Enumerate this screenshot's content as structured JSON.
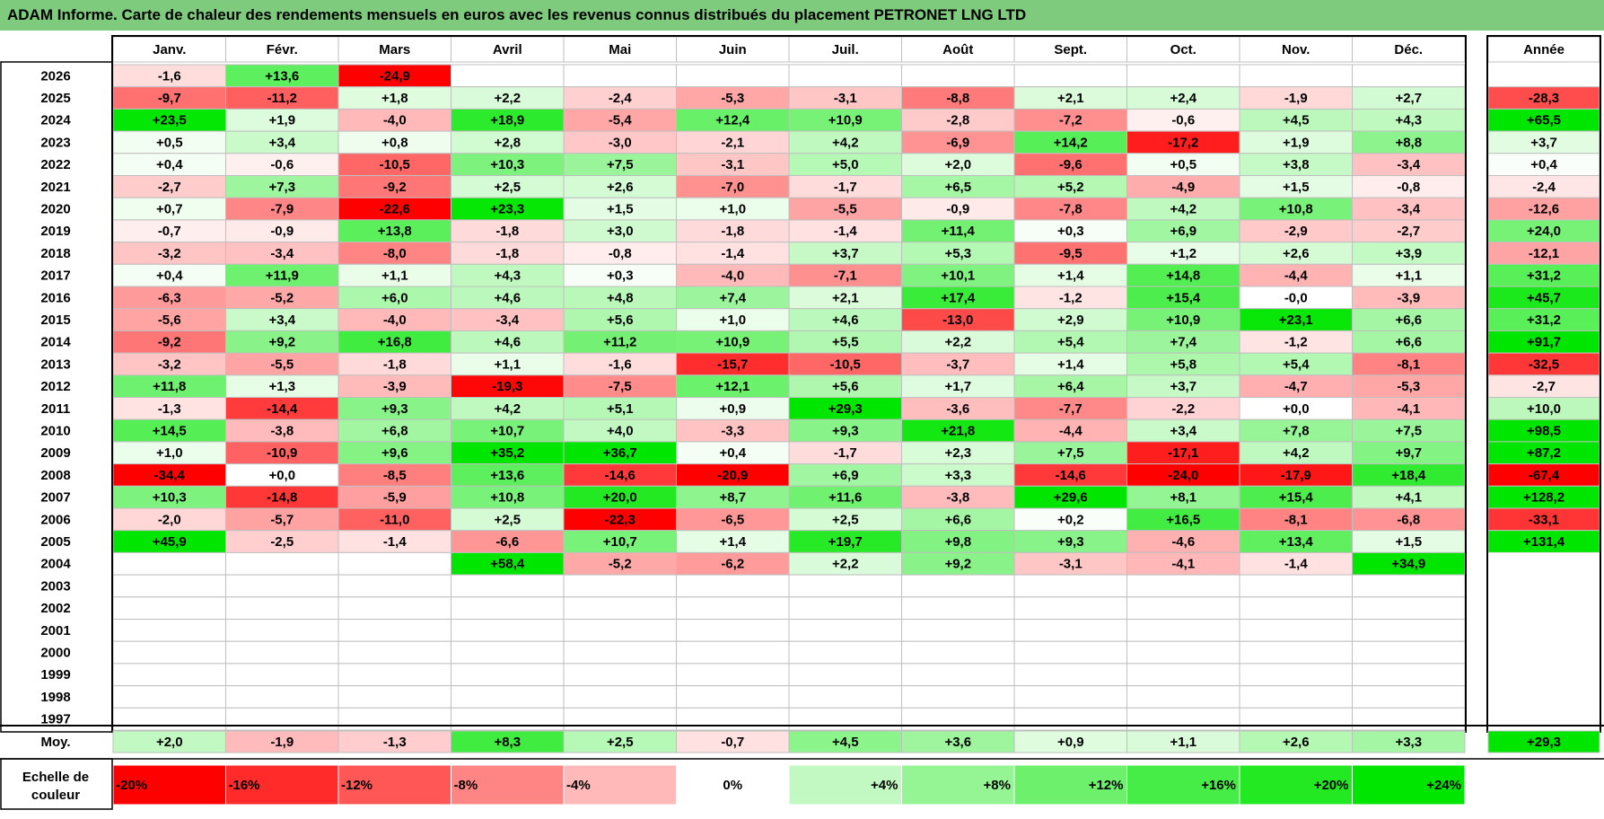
{
  "title": "ADAM Informe. Carte de chaleur des rendements mensuels en euros avec les revenus connus distribués du placement PETRONET LNG LTD",
  "chart_data": {
    "type": "heatmap",
    "title": "ADAM Informe. Carte de chaleur des rendements mensuels en euros avec les revenus connus distribués du placement PETRONET LNG LTD",
    "months": [
      "Janv.",
      "Févr.",
      "Mars",
      "Avril",
      "Mai",
      "Juin",
      "Juil.",
      "Août",
      "Sept.",
      "Oct.",
      "Nov.",
      "Déc."
    ],
    "year_header": "Année",
    "rows": [
      {
        "year": "2026",
        "months": [
          "-1,6",
          "+13,6",
          "-24,9",
          "",
          "",
          "",
          "",
          "",
          "",
          "",
          "",
          ""
        ],
        "annual": ""
      },
      {
        "year": "2025",
        "months": [
          "-9,7",
          "-11,2",
          "+1,8",
          "+2,2",
          "-2,4",
          "-5,3",
          "-3,1",
          "-8,8",
          "+2,1",
          "+2,4",
          "-1,9",
          "+2,7"
        ],
        "annual": "-28,3"
      },
      {
        "year": "2024",
        "months": [
          "+23,5",
          "+1,9",
          "-4,0",
          "+18,9",
          "-5,4",
          "+12,4",
          "+10,9",
          "-2,8",
          "-7,2",
          "-0,6",
          "+4,5",
          "+4,3"
        ],
        "annual": "+65,5"
      },
      {
        "year": "2023",
        "months": [
          "+0,5",
          "+3,4",
          "+0,8",
          "+2,8",
          "-3,0",
          "-2,1",
          "+4,2",
          "-6,9",
          "+14,2",
          "-17,2",
          "+1,9",
          "+8,8"
        ],
        "annual": "+3,7"
      },
      {
        "year": "2022",
        "months": [
          "+0,4",
          "-0,6",
          "-10,5",
          "+10,3",
          "+7,5",
          "-3,1",
          "+5,0",
          "+2,0",
          "-9,6",
          "+0,5",
          "+3,8",
          "-3,4"
        ],
        "annual": "+0,4"
      },
      {
        "year": "2021",
        "months": [
          "-2,7",
          "+7,3",
          "-9,2",
          "+2,5",
          "+2,6",
          "-7,0",
          "-1,7",
          "+6,5",
          "+5,2",
          "-4,9",
          "+1,5",
          "-0,8"
        ],
        "annual": "-2,4"
      },
      {
        "year": "2020",
        "months": [
          "+0,7",
          "-7,9",
          "-22,6",
          "+23,3",
          "+1,5",
          "+1,0",
          "-5,5",
          "-0,9",
          "-7,8",
          "+4,2",
          "+10,8",
          "-3,4"
        ],
        "annual": "-12,6"
      },
      {
        "year": "2019",
        "months": [
          "-0,7",
          "-0,9",
          "+13,8",
          "-1,8",
          "+3,0",
          "-1,8",
          "-1,4",
          "+11,4",
          "+0,3",
          "+6,9",
          "-2,9",
          "-2,7"
        ],
        "annual": "+24,0"
      },
      {
        "year": "2018",
        "months": [
          "-3,2",
          "-3,4",
          "-8,0",
          "-1,8",
          "-0,8",
          "-1,4",
          "+3,7",
          "+5,3",
          "-9,5",
          "+1,2",
          "+2,6",
          "+3,9"
        ],
        "annual": "-12,1"
      },
      {
        "year": "2017",
        "months": [
          "+0,4",
          "+11,9",
          "+1,1",
          "+4,3",
          "+0,3",
          "-4,0",
          "-7,1",
          "+10,1",
          "+1,4",
          "+14,8",
          "-4,4",
          "+1,1"
        ],
        "annual": "+31,2"
      },
      {
        "year": "2016",
        "months": [
          "-6,3",
          "-5,2",
          "+6,0",
          "+4,6",
          "+4,8",
          "+7,4",
          "+2,1",
          "+17,4",
          "-1,2",
          "+15,4",
          "-0,0",
          "-3,9"
        ],
        "annual": "+45,7"
      },
      {
        "year": "2015",
        "months": [
          "-5,6",
          "+3,4",
          "-4,0",
          "-3,4",
          "+5,6",
          "+1,0",
          "+4,6",
          "-13,0",
          "+2,9",
          "+10,9",
          "+23,1",
          "+6,6"
        ],
        "annual": "+31,2"
      },
      {
        "year": "2014",
        "months": [
          "-9,2",
          "+9,2",
          "+16,8",
          "+4,6",
          "+11,2",
          "+10,9",
          "+5,5",
          "+2,2",
          "+5,4",
          "+7,4",
          "-1,2",
          "+6,6"
        ],
        "annual": "+91,7"
      },
      {
        "year": "2013",
        "months": [
          "-3,2",
          "-5,5",
          "-1,8",
          "+1,1",
          "-1,6",
          "-15,7",
          "-10,5",
          "-3,7",
          "+1,4",
          "+5,8",
          "+5,4",
          "-8,1"
        ],
        "annual": "-32,5"
      },
      {
        "year": "2012",
        "months": [
          "+11,8",
          "+1,3",
          "-3,9",
          "-19,3",
          "-7,5",
          "+12,1",
          "+5,6",
          "+1,7",
          "+6,4",
          "+3,7",
          "-4,7",
          "-5,3"
        ],
        "annual": "-2,7"
      },
      {
        "year": "2011",
        "months": [
          "-1,3",
          "-14,4",
          "+9,3",
          "+4,2",
          "+5,1",
          "+0,9",
          "+29,3",
          "-3,6",
          "-7,7",
          "-2,2",
          "+0,0",
          "-4,1"
        ],
        "annual": "+10,0"
      },
      {
        "year": "2010",
        "months": [
          "+14,5",
          "-3,8",
          "+6,8",
          "+10,7",
          "+4,0",
          "-3,3",
          "+9,3",
          "+21,8",
          "-4,4",
          "+3,4",
          "+7,8",
          "+7,5"
        ],
        "annual": "+98,5"
      },
      {
        "year": "2009",
        "months": [
          "+1,0",
          "-10,9",
          "+9,6",
          "+35,2",
          "+36,7",
          "+0,4",
          "-1,7",
          "+2,3",
          "+7,5",
          "-17,1",
          "+4,2",
          "+9,7"
        ],
        "annual": "+87,2"
      },
      {
        "year": "2008",
        "months": [
          "-34,4",
          "+0,0",
          "-8,5",
          "+13,6",
          "-14,6",
          "-20,9",
          "+6,9",
          "+3,3",
          "-14,6",
          "-24,0",
          "-17,9",
          "+18,4"
        ],
        "annual": "-67,4"
      },
      {
        "year": "2007",
        "months": [
          "+10,3",
          "-14,8",
          "-5,9",
          "+10,8",
          "+20,0",
          "+8,7",
          "+11,6",
          "-3,8",
          "+29,6",
          "+8,1",
          "+15,4",
          "+4,1"
        ],
        "annual": "+128,2"
      },
      {
        "year": "2006",
        "months": [
          "-2,0",
          "-5,7",
          "-11,0",
          "+2,5",
          "-22,3",
          "-6,5",
          "+2,5",
          "+6,6",
          "+0,2",
          "+16,5",
          "-8,1",
          "-6,8"
        ],
        "annual": "-33,1"
      },
      {
        "year": "2005",
        "months": [
          "+45,9",
          "-2,5",
          "-1,4",
          "-6,6",
          "+10,7",
          "+1,4",
          "+19,7",
          "+9,8",
          "+9,3",
          "-4,6",
          "+13,4",
          "+1,5"
        ],
        "annual": "+131,4"
      },
      {
        "year": "2004",
        "months": [
          "",
          "",
          "",
          "+58,4",
          "-5,2",
          "-6,2",
          "+2,2",
          "+9,2",
          "-3,1",
          "-4,1",
          "-1,4",
          "+34,9"
        ],
        "annual": ""
      },
      {
        "year": "2003",
        "months": [
          "",
          "",
          "",
          "",
          "",
          "",
          "",
          "",
          "",
          "",
          "",
          ""
        ],
        "annual": ""
      },
      {
        "year": "2002",
        "months": [
          "",
          "",
          "",
          "",
          "",
          "",
          "",
          "",
          "",
          "",
          "",
          ""
        ],
        "annual": ""
      },
      {
        "year": "2001",
        "months": [
          "",
          "",
          "",
          "",
          "",
          "",
          "",
          "",
          "",
          "",
          "",
          ""
        ],
        "annual": ""
      },
      {
        "year": "2000",
        "months": [
          "",
          "",
          "",
          "",
          "",
          "",
          "",
          "",
          "",
          "",
          "",
          ""
        ],
        "annual": ""
      },
      {
        "year": "1999",
        "months": [
          "",
          "",
          "",
          "",
          "",
          "",
          "",
          "",
          "",
          "",
          "",
          ""
        ],
        "annual": ""
      },
      {
        "year": "1998",
        "months": [
          "",
          "",
          "",
          "",
          "",
          "",
          "",
          "",
          "",
          "",
          "",
          ""
        ],
        "annual": ""
      },
      {
        "year": "1997",
        "months": [
          "",
          "",
          "",
          "",
          "",
          "",
          "",
          "",
          "",
          "",
          "",
          ""
        ],
        "annual": ""
      }
    ],
    "average": {
      "label": "Moy.",
      "months": [
        "+2,0",
        "-1,9",
        "-1,3",
        "+8,3",
        "+2,5",
        "-0,7",
        "+4,5",
        "+3,6",
        "+0,9",
        "+1,1",
        "+2,6",
        "+3,3"
      ],
      "annual": "+29,3"
    },
    "scale": {
      "label_line1": "Echelle de",
      "label_line2": "couleur",
      "steps": [
        "-20%",
        "-16%",
        "-12%",
        "-8%",
        "-4%",
        "0%",
        "+4%",
        "+8%",
        "+12%",
        "+16%",
        "+20%",
        "+24%"
      ]
    }
  },
  "colors": {
    "title_bg": "#7ecb7e",
    "neg_max": "#ff0000",
    "pos_max": "#00e600",
    "neutral": "#ffffff",
    "cell_border": "#bfbfbf",
    "frame": "#000000"
  }
}
